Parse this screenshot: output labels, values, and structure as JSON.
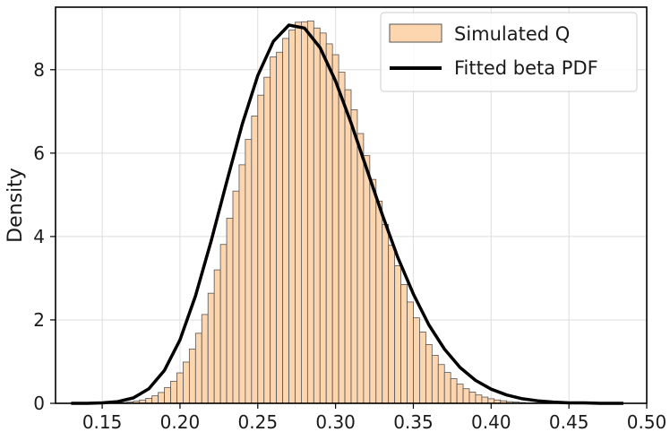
{
  "chart_data": {
    "type": "bar",
    "title": "",
    "xlabel": "",
    "ylabel": "Density",
    "xlim": [
      0.12,
      0.5
    ],
    "ylim": [
      0,
      9.5
    ],
    "x_ticks": [
      "0.15",
      "0.20",
      "0.25",
      "0.30",
      "0.35",
      "0.40",
      "0.45",
      "0.50"
    ],
    "y_ticks": [
      "0",
      "2",
      "4",
      "6",
      "8"
    ],
    "grid": true,
    "legend_position": "top-right",
    "series": [
      {
        "name": "Simulated Q",
        "kind": "histogram",
        "color": "#fdd5ae",
        "edge_color": "#555555",
        "bin_edges_start": 0.13,
        "bin_width": 0.004,
        "values": [
          0.0,
          0.0,
          0.0,
          0.0,
          0.0,
          0.0,
          0.0,
          0.01,
          0.02,
          0.03,
          0.05,
          0.08,
          0.12,
          0.18,
          0.26,
          0.38,
          0.53,
          0.73,
          0.99,
          1.3,
          1.68,
          2.13,
          2.64,
          3.2,
          3.81,
          4.44,
          5.09,
          5.72,
          6.33,
          6.89,
          7.39,
          7.82,
          8.31,
          8.42,
          8.75,
          8.95,
          9.14,
          9.15,
          9.17,
          9.0,
          8.88,
          8.62,
          8.36,
          7.94,
          7.52,
          7.04,
          6.47,
          5.94,
          5.37,
          4.85,
          4.29,
          3.79,
          3.3,
          2.85,
          2.43,
          2.05,
          1.71,
          1.41,
          1.15,
          0.93,
          0.74,
          0.59,
          0.46,
          0.35,
          0.27,
          0.2,
          0.15,
          0.11,
          0.08,
          0.06,
          0.04,
          0.03,
          0.02,
          0.01,
          0.01,
          0.0,
          0.0,
          0.0,
          0.0,
          0.0,
          0.0,
          0.0,
          0.0,
          0.0,
          0.0,
          0.0,
          0.0,
          0.0,
          0.0
        ]
      },
      {
        "name": "Fitted beta PDF",
        "kind": "line",
        "color": "#000000",
        "x": [
          0.13,
          0.14,
          0.15,
          0.16,
          0.17,
          0.18,
          0.19,
          0.2,
          0.21,
          0.22,
          0.23,
          0.24,
          0.25,
          0.26,
          0.27,
          0.28,
          0.29,
          0.3,
          0.31,
          0.32,
          0.33,
          0.34,
          0.35,
          0.36,
          0.37,
          0.38,
          0.39,
          0.4,
          0.41,
          0.42,
          0.43,
          0.44,
          0.45,
          0.46,
          0.47,
          0.48,
          0.485
        ],
        "y": [
          0.0,
          0.0,
          0.01,
          0.04,
          0.13,
          0.35,
          0.79,
          1.52,
          2.58,
          3.89,
          5.31,
          6.69,
          7.86,
          8.68,
          9.07,
          9.0,
          8.53,
          7.73,
          6.72,
          5.62,
          4.53,
          3.5,
          2.62,
          1.88,
          1.3,
          0.86,
          0.55,
          0.34,
          0.2,
          0.11,
          0.06,
          0.03,
          0.01,
          0.01,
          0.0,
          0.0,
          0.0
        ]
      }
    ]
  }
}
